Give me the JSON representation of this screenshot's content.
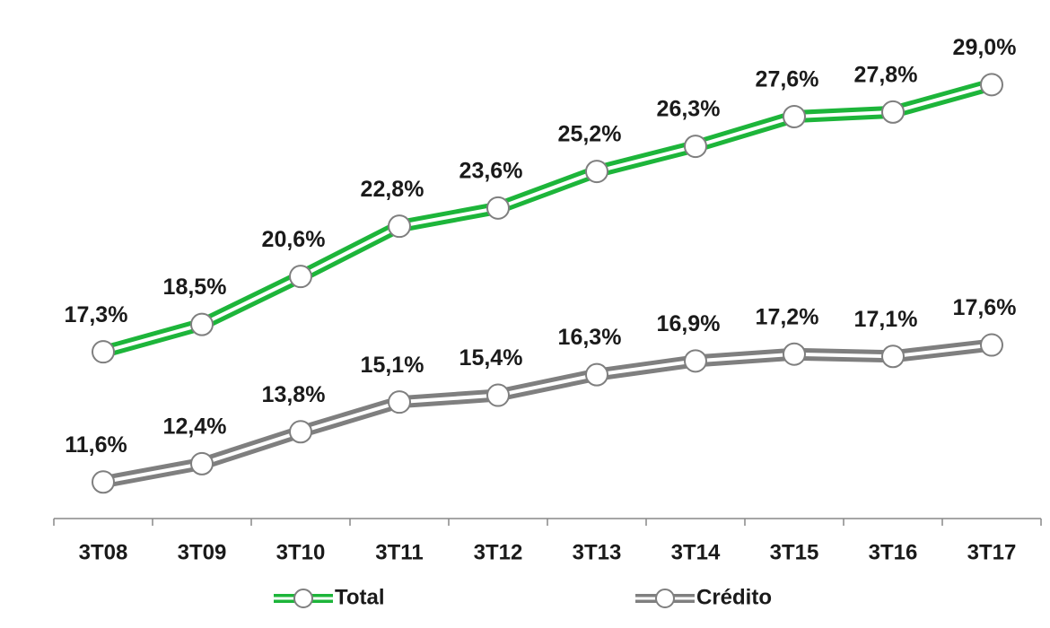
{
  "chart_data": {
    "type": "line",
    "categories": [
      "3T08",
      "3T09",
      "3T10",
      "3T11",
      "3T12",
      "3T13",
      "3T14",
      "3T15",
      "3T16",
      "3T17"
    ],
    "series": [
      {
        "name": "Total",
        "color": "#1db53a",
        "values": [
          17.3,
          18.5,
          20.6,
          22.8,
          23.6,
          25.2,
          26.3,
          27.6,
          27.8,
          29.0
        ],
        "value_labels": [
          "17,3%",
          "18,5%",
          "20,6%",
          "22,8%",
          "23,6%",
          "25,2%",
          "26,3%",
          "27,6%",
          "27,8%",
          "29,0%"
        ]
      },
      {
        "name": "Crédito",
        "color": "#7f7f7f",
        "values": [
          11.6,
          12.4,
          13.8,
          15.1,
          15.4,
          16.3,
          16.9,
          17.2,
          17.1,
          17.6
        ],
        "value_labels": [
          "11,6%",
          "12,4%",
          "13,8%",
          "15,1%",
          "15,4%",
          "16,3%",
          "16,9%",
          "17,2%",
          "17,1%",
          "17,6%"
        ]
      }
    ],
    "ylim": [
      10,
      32
    ]
  }
}
